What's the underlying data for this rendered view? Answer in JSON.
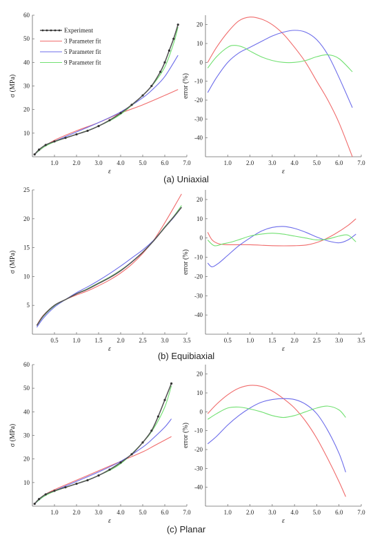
{
  "captions": [
    "(a) Uniaxial",
    "(b) Equibiaxial",
    "(c) Planar"
  ],
  "legend": [
    "Experiment",
    "3 Parameter fit",
    "5 Parameter fit",
    "9 Parameter fit"
  ],
  "colors": {
    "experiment": "#555555",
    "experiment_marker": "#333333",
    "fit3": "#f06a6a",
    "fit5": "#6b6bea",
    "fit9": "#70e070",
    "axis": "#666666"
  },
  "chart_data": [
    {
      "id": "uniaxial-stress",
      "type": "line",
      "xlabel": "ε",
      "ylabel": "σ (MPa)",
      "xlim": [
        0,
        7
      ],
      "ylim": [
        0,
        60
      ],
      "xticks": [
        1.0,
        2.0,
        3.0,
        4.0,
        5.0,
        6.0,
        7.0
      ],
      "xtick_labels": [
        "1.0",
        "2.0",
        "3.0",
        "4.0",
        "5.0",
        "6.0",
        "7.0"
      ],
      "yticks": [
        10,
        20,
        30,
        40,
        50,
        60
      ],
      "ytick_labels": [
        "10",
        "20",
        "30",
        "40",
        "50",
        "60"
      ],
      "legend_position": "top-left",
      "series": [
        {
          "name": "Experiment",
          "key": "experiment",
          "markers": true,
          "x": [
            0.1,
            0.3,
            0.6,
            1.0,
            1.5,
            2.0,
            2.5,
            3.0,
            3.5,
            4.0,
            4.5,
            5.0,
            5.4,
            5.8,
            6.0,
            6.2,
            6.4,
            6.6
          ],
          "y": [
            1,
            3,
            5,
            6.5,
            8,
            9.5,
            11,
            13,
            15.5,
            18.5,
            22,
            26,
            30,
            36,
            40,
            45,
            50,
            56
          ]
        },
        {
          "name": "3 Parameter fit",
          "key": "fit3",
          "x": [
            0.1,
            0.5,
            1.0,
            2.0,
            3.0,
            4.0,
            5.0,
            6.0,
            6.6
          ],
          "y": [
            1,
            4,
            7,
            11,
            14.5,
            18.5,
            22,
            26,
            28.5
          ]
        },
        {
          "name": "5 Parameter fit",
          "key": "fit5",
          "x": [
            0.1,
            0.5,
            1.0,
            2.0,
            3.0,
            4.0,
            5.0,
            5.5,
            6.0,
            6.6
          ],
          "y": [
            1,
            4,
            6.5,
            10.5,
            14.5,
            19,
            25,
            29,
            34,
            43
          ]
        },
        {
          "name": "9 Parameter fit",
          "key": "fit9",
          "x": [
            0.1,
            0.5,
            1.0,
            2.0,
            3.0,
            4.0,
            5.0,
            5.5,
            6.0,
            6.4,
            6.6
          ],
          "y": [
            1,
            4,
            6.3,
            9.5,
            13,
            18,
            26,
            31,
            38,
            48,
            55
          ]
        }
      ]
    },
    {
      "id": "uniaxial-error",
      "type": "line",
      "xlabel": "ε",
      "ylabel": "error (%)",
      "xlim": [
        0,
        7
      ],
      "ylim": [
        -50,
        25
      ],
      "xticks": [
        1.0,
        2.0,
        3.0,
        4.0,
        5.0,
        6.0,
        7.0
      ],
      "xtick_labels": [
        "1.0",
        "2.0",
        "3.0",
        "4.0",
        "5.0",
        "6.0",
        "7.0"
      ],
      "yticks": [
        -40,
        -30,
        -20,
        -10,
        0,
        10,
        20
      ],
      "ytick_labels": [
        "-40",
        "-30",
        "-20",
        "-10",
        "0",
        "10",
        "20"
      ],
      "series": [
        {
          "key": "fit3",
          "x": [
            0.1,
            0.5,
            1.0,
            1.5,
            2.0,
            2.5,
            3.0,
            3.5,
            4.0,
            4.5,
            5.0,
            5.5,
            6.0,
            6.6
          ],
          "y": [
            0,
            8,
            16,
            22,
            24,
            23,
            20,
            15,
            8,
            0,
            -10,
            -20,
            -32,
            -50
          ]
        },
        {
          "key": "fit5",
          "x": [
            0.1,
            0.5,
            1.0,
            1.5,
            2.0,
            2.5,
            3.0,
            3.5,
            4.0,
            4.5,
            5.0,
            5.5,
            6.0,
            6.6
          ],
          "y": [
            -16,
            -8,
            0,
            5,
            8,
            11,
            14,
            16,
            17,
            16,
            12,
            4,
            -8,
            -24
          ]
        },
        {
          "key": "fit9",
          "x": [
            0.1,
            0.5,
            1.0,
            1.3,
            1.7,
            2.0,
            2.5,
            3.0,
            3.5,
            4.0,
            4.5,
            5.0,
            5.5,
            6.0,
            6.6
          ],
          "y": [
            -3,
            3,
            8,
            9,
            8,
            6,
            3,
            1,
            0,
            0,
            1,
            3,
            4,
            2,
            -5
          ]
        }
      ]
    },
    {
      "id": "equibiaxial-stress",
      "type": "line",
      "xlabel": "ε",
      "ylabel": "σ (MPa)",
      "xlim": [
        0,
        3.5
      ],
      "ylim": [
        0,
        25
      ],
      "xticks": [
        0.5,
        1.0,
        1.5,
        2.0,
        2.5,
        3.0,
        3.5
      ],
      "xtick_labels": [
        "0.5",
        "1.0",
        "1.5",
        "2.0",
        "2.5",
        "3.0",
        "3.5"
      ],
      "yticks": [
        5,
        10,
        15,
        20,
        25
      ],
      "ytick_labels": [
        "5",
        "10",
        "15",
        "20",
        "25"
      ],
      "series": [
        {
          "key": "experiment",
          "x": [
            0.1,
            0.25,
            0.5,
            0.75,
            1.0,
            1.25,
            1.5,
            1.75,
            2.0,
            2.25,
            2.5,
            2.75,
            3.0,
            3.2,
            3.38
          ],
          "y": [
            1.5,
            3.2,
            5,
            6,
            7,
            7.8,
            8.8,
            9.8,
            11,
            12.5,
            14.2,
            16.2,
            18.5,
            20.3,
            22
          ]
        },
        {
          "key": "fit3",
          "x": [
            0.1,
            0.25,
            0.5,
            0.75,
            1.0,
            1.25,
            1.5,
            1.75,
            2.0,
            2.25,
            2.5,
            2.75,
            3.0,
            3.2,
            3.38
          ],
          "y": [
            1.6,
            3.3,
            5,
            6,
            6.8,
            7.5,
            8.4,
            9.4,
            10.6,
            12.1,
            14,
            16.3,
            19.3,
            21.9,
            24.3
          ]
        },
        {
          "key": "fit5",
          "x": [
            0.1,
            0.25,
            0.5,
            0.75,
            1.0,
            1.25,
            1.5,
            1.75,
            2.0,
            2.25,
            2.5,
            2.75,
            3.0,
            3.2,
            3.38
          ],
          "y": [
            1.2,
            2.8,
            4.7,
            6,
            7.2,
            8.2,
            9.3,
            10.5,
            11.8,
            13.2,
            14.6,
            16.3,
            18.5,
            20.2,
            22
          ]
        },
        {
          "key": "fit9",
          "x": [
            0.1,
            0.25,
            0.5,
            0.75,
            1.0,
            1.25,
            1.5,
            1.75,
            2.0,
            2.25,
            2.5,
            2.75,
            3.0,
            3.2,
            3.38
          ],
          "y": [
            1.5,
            3.1,
            4.9,
            6,
            7,
            7.9,
            8.9,
            9.9,
            11.1,
            12.5,
            14.2,
            16.2,
            18.6,
            20.4,
            22.3
          ]
        }
      ]
    },
    {
      "id": "equibiaxial-error",
      "type": "line",
      "xlabel": "ε",
      "ylabel": "error (%)",
      "xlim": [
        0,
        3.5
      ],
      "ylim": [
        -50,
        25
      ],
      "xticks": [
        0.5,
        1.0,
        1.5,
        2.0,
        2.5,
        3.0,
        3.5
      ],
      "xtick_labels": [
        "0.5",
        "1.0",
        "1.5",
        "2.0",
        "2.5",
        "3.0",
        "3.5"
      ],
      "yticks": [
        -40,
        -30,
        -20,
        -10,
        0,
        10,
        20
      ],
      "ytick_labels": [
        "-40",
        "-30",
        "-20",
        "-10",
        "0",
        "10",
        "20"
      ],
      "series": [
        {
          "key": "fit3",
          "x": [
            0.05,
            0.15,
            0.3,
            0.5,
            1.0,
            1.5,
            2.0,
            2.3,
            2.6,
            2.9,
            3.2,
            3.38
          ],
          "y": [
            3,
            -1,
            -3,
            -3.5,
            -3.5,
            -4,
            -4,
            -3.5,
            -1.5,
            2,
            6.5,
            10
          ]
        },
        {
          "key": "fit5",
          "x": [
            0.05,
            0.15,
            0.3,
            0.5,
            0.75,
            1.0,
            1.25,
            1.5,
            1.75,
            2.0,
            2.25,
            2.5,
            2.75,
            3.0,
            3.2,
            3.38
          ],
          "y": [
            -13,
            -15,
            -13,
            -9,
            -4,
            0,
            3.5,
            5.5,
            6,
            5,
            3,
            0.5,
            -1.5,
            -2.5,
            -1,
            2
          ]
        },
        {
          "key": "fit9",
          "x": [
            0.05,
            0.2,
            0.4,
            0.6,
            0.8,
            1.0,
            1.25,
            1.5,
            1.75,
            2.0,
            2.25,
            2.5,
            2.75,
            3.0,
            3.2,
            3.38
          ],
          "y": [
            -1,
            -4,
            -3,
            -2,
            -0.5,
            1,
            2,
            2.5,
            2,
            1,
            0,
            -1,
            -0.5,
            1,
            1.5,
            -2
          ]
        }
      ]
    },
    {
      "id": "planar-stress",
      "type": "line",
      "xlabel": "ε",
      "ylabel": "σ (MPa)",
      "xlim": [
        0,
        7
      ],
      "ylim": [
        0,
        60
      ],
      "xticks": [
        1.0,
        2.0,
        3.0,
        4.0,
        5.0,
        6.0,
        7.0
      ],
      "xtick_labels": [
        "1.0",
        "2.0",
        "3.0",
        "4.0",
        "5.0",
        "6.0",
        "7.0"
      ],
      "yticks": [
        10,
        20,
        30,
        40,
        50,
        60
      ],
      "ytick_labels": [
        "10",
        "20",
        "30",
        "40",
        "50",
        "60"
      ],
      "series": [
        {
          "key": "experiment",
          "markers": true,
          "x": [
            0.1,
            0.3,
            0.6,
            1.0,
            1.5,
            2.0,
            2.5,
            3.0,
            3.5,
            4.0,
            4.5,
            5.0,
            5.4,
            5.7,
            6.0,
            6.3
          ],
          "y": [
            1,
            3,
            5,
            6.5,
            8,
            9.5,
            11,
            13,
            15.5,
            18.5,
            22,
            27,
            32,
            38,
            45,
            52
          ]
        },
        {
          "key": "fit3",
          "x": [
            0.1,
            0.5,
            1.0,
            2.0,
            3.0,
            4.0,
            5.0,
            5.5,
            6.0,
            6.3
          ],
          "y": [
            1,
            4.5,
            7,
            11,
            15,
            19,
            23,
            25.5,
            28,
            29.5
          ]
        },
        {
          "key": "fit5",
          "x": [
            0.1,
            0.5,
            1.0,
            2.0,
            3.0,
            4.0,
            5.0,
            5.5,
            6.0,
            6.3
          ],
          "y": [
            1,
            4,
            6.5,
            10.5,
            14.5,
            19,
            25,
            29,
            33.5,
            37
          ]
        },
        {
          "key": "fit9",
          "x": [
            0.1,
            0.5,
            1.0,
            2.0,
            3.0,
            4.0,
            5.0,
            5.5,
            6.0,
            6.3
          ],
          "y": [
            1,
            4,
            6.3,
            9.5,
            13,
            18,
            27,
            33,
            42,
            51
          ]
        }
      ]
    },
    {
      "id": "planar-error",
      "type": "line",
      "xlabel": "ε",
      "ylabel": "error (%)",
      "xlim": [
        0,
        7
      ],
      "ylim": [
        -50,
        25
      ],
      "xticks": [
        1.0,
        2.0,
        3.0,
        4.0,
        5.0,
        6.0,
        7.0
      ],
      "xtick_labels": [
        "1.0",
        "2.0",
        "3.0",
        "4.0",
        "5.0",
        "6.0",
        "7.0"
      ],
      "yticks": [
        -40,
        -30,
        -20,
        -10,
        0,
        10,
        20
      ],
      "ytick_labels": [
        "-40",
        "-30",
        "-20",
        "-10",
        "0",
        "10",
        "20"
      ],
      "series": [
        {
          "key": "fit3",
          "x": [
            0.1,
            0.5,
            1.0,
            1.5,
            2.0,
            2.5,
            3.0,
            3.5,
            4.0,
            4.5,
            5.0,
            5.5,
            6.0,
            6.3
          ],
          "y": [
            -1,
            4,
            9,
            12.5,
            14,
            13.5,
            11,
            7,
            2,
            -5,
            -14,
            -25,
            -37,
            -45
          ]
        },
        {
          "key": "fit5",
          "x": [
            0.1,
            0.5,
            1.0,
            1.5,
            2.0,
            2.5,
            3.0,
            3.5,
            4.0,
            4.5,
            5.0,
            5.5,
            6.0,
            6.3
          ],
          "y": [
            -17,
            -13,
            -7,
            -2,
            2,
            5,
            6.5,
            7,
            6.5,
            4,
            -1,
            -10,
            -22,
            -32
          ]
        },
        {
          "key": "fit9",
          "x": [
            0.1,
            0.5,
            1.0,
            1.5,
            2.0,
            2.5,
            3.0,
            3.5,
            4.0,
            4.5,
            5.0,
            5.5,
            6.0,
            6.3
          ],
          "y": [
            -4,
            -1,
            2,
            2.5,
            1.5,
            0,
            -2,
            -3,
            -2,
            0,
            2,
            3,
            1,
            -3
          ]
        }
      ]
    }
  ]
}
